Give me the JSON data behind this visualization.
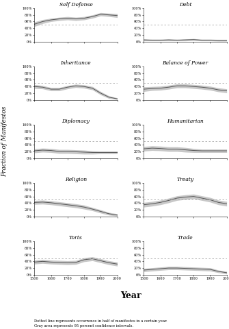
{
  "titles": [
    "Self Defense",
    "Debt",
    "Inheritance",
    "Balance of Power",
    "Diplomacy",
    "Humanitarian",
    "Religion",
    "Treaty",
    "Torts",
    "Trade"
  ],
  "year_range": [
    1500,
    2000
  ],
  "dashed_line_y": 0.5,
  "subplots": {
    "Self Defense": {
      "years": [
        1500,
        1550,
        1600,
        1650,
        1700,
        1750,
        1800,
        1850,
        1900,
        1950,
        2000
      ],
      "mean": [
        0.52,
        0.6,
        0.65,
        0.68,
        0.7,
        0.68,
        0.7,
        0.75,
        0.82,
        0.8,
        0.78
      ],
      "lower": [
        0.45,
        0.54,
        0.6,
        0.63,
        0.65,
        0.63,
        0.65,
        0.7,
        0.77,
        0.75,
        0.72
      ],
      "upper": [
        0.59,
        0.66,
        0.7,
        0.73,
        0.75,
        0.73,
        0.75,
        0.8,
        0.87,
        0.85,
        0.84
      ]
    },
    "Debt": {
      "years": [
        1500,
        1550,
        1600,
        1650,
        1700,
        1750,
        1800,
        1850,
        1900,
        1950,
        2000
      ],
      "mean": [
        0.05,
        0.04,
        0.04,
        0.05,
        0.04,
        0.05,
        0.06,
        0.04,
        0.04,
        0.03,
        0.03
      ],
      "lower": [
        0.02,
        0.02,
        0.02,
        0.02,
        0.02,
        0.02,
        0.03,
        0.02,
        0.02,
        0.01,
        0.01
      ],
      "upper": [
        0.08,
        0.07,
        0.07,
        0.08,
        0.07,
        0.08,
        0.09,
        0.07,
        0.07,
        0.06,
        0.06
      ]
    },
    "Inheritance": {
      "years": [
        1500,
        1550,
        1600,
        1650,
        1700,
        1750,
        1800,
        1850,
        1900,
        1950,
        2000
      ],
      "mean": [
        0.4,
        0.38,
        0.32,
        0.32,
        0.38,
        0.42,
        0.4,
        0.35,
        0.2,
        0.08,
        0.03
      ],
      "lower": [
        0.34,
        0.33,
        0.27,
        0.27,
        0.33,
        0.37,
        0.35,
        0.3,
        0.15,
        0.04,
        0.01
      ],
      "upper": [
        0.46,
        0.43,
        0.37,
        0.37,
        0.43,
        0.47,
        0.45,
        0.4,
        0.25,
        0.12,
        0.06
      ]
    },
    "Balance of Power": {
      "years": [
        1500,
        1550,
        1600,
        1650,
        1700,
        1750,
        1800,
        1850,
        1900,
        1950,
        2000
      ],
      "mean": [
        0.32,
        0.34,
        0.35,
        0.38,
        0.42,
        0.42,
        0.4,
        0.38,
        0.35,
        0.3,
        0.27
      ],
      "lower": [
        0.25,
        0.28,
        0.29,
        0.32,
        0.36,
        0.36,
        0.34,
        0.32,
        0.29,
        0.24,
        0.21
      ],
      "upper": [
        0.39,
        0.4,
        0.41,
        0.44,
        0.48,
        0.48,
        0.46,
        0.44,
        0.41,
        0.36,
        0.33
      ]
    },
    "Diplomacy": {
      "years": [
        1500,
        1550,
        1600,
        1650,
        1700,
        1750,
        1800,
        1850,
        1900,
        1950,
        2000
      ],
      "mean": [
        0.22,
        0.24,
        0.23,
        0.2,
        0.2,
        0.19,
        0.18,
        0.17,
        0.17,
        0.17,
        0.17
      ],
      "lower": [
        0.16,
        0.18,
        0.17,
        0.14,
        0.14,
        0.13,
        0.12,
        0.12,
        0.13,
        0.13,
        0.13
      ],
      "upper": [
        0.28,
        0.3,
        0.29,
        0.26,
        0.26,
        0.25,
        0.24,
        0.22,
        0.21,
        0.21,
        0.21
      ]
    },
    "Humanitarian": {
      "years": [
        1500,
        1550,
        1600,
        1650,
        1700,
        1750,
        1800,
        1850,
        1900,
        1950,
        2000
      ],
      "mean": [
        0.28,
        0.3,
        0.29,
        0.27,
        0.27,
        0.25,
        0.23,
        0.22,
        0.22,
        0.22,
        0.22
      ],
      "lower": [
        0.21,
        0.23,
        0.22,
        0.2,
        0.2,
        0.18,
        0.17,
        0.17,
        0.17,
        0.17,
        0.17
      ],
      "upper": [
        0.35,
        0.37,
        0.36,
        0.34,
        0.34,
        0.32,
        0.29,
        0.27,
        0.27,
        0.27,
        0.27
      ]
    },
    "Religion": {
      "years": [
        1500,
        1550,
        1600,
        1650,
        1700,
        1750,
        1800,
        1850,
        1900,
        1950,
        2000
      ],
      "mean": [
        0.42,
        0.43,
        0.41,
        0.38,
        0.35,
        0.32,
        0.28,
        0.22,
        0.15,
        0.08,
        0.04
      ],
      "lower": [
        0.36,
        0.37,
        0.35,
        0.32,
        0.29,
        0.26,
        0.22,
        0.17,
        0.1,
        0.04,
        0.01
      ],
      "upper": [
        0.48,
        0.49,
        0.47,
        0.44,
        0.41,
        0.38,
        0.34,
        0.27,
        0.2,
        0.12,
        0.08
      ]
    },
    "Treaty": {
      "years": [
        1500,
        1550,
        1600,
        1650,
        1700,
        1750,
        1800,
        1850,
        1900,
        1950,
        2000
      ],
      "mean": [
        0.35,
        0.38,
        0.42,
        0.48,
        0.55,
        0.58,
        0.6,
        0.55,
        0.5,
        0.42,
        0.38
      ],
      "lower": [
        0.28,
        0.31,
        0.35,
        0.41,
        0.48,
        0.51,
        0.53,
        0.48,
        0.43,
        0.35,
        0.31
      ],
      "upper": [
        0.42,
        0.45,
        0.49,
        0.55,
        0.62,
        0.65,
        0.67,
        0.62,
        0.57,
        0.49,
        0.45
      ]
    },
    "Torts": {
      "years": [
        1500,
        1550,
        1600,
        1650,
        1700,
        1750,
        1800,
        1850,
        1900,
        1950,
        2000
      ],
      "mean": [
        0.38,
        0.4,
        0.38,
        0.37,
        0.36,
        0.37,
        0.45,
        0.48,
        0.42,
        0.36,
        0.32
      ],
      "lower": [
        0.32,
        0.34,
        0.32,
        0.31,
        0.3,
        0.31,
        0.39,
        0.42,
        0.36,
        0.3,
        0.26
      ],
      "upper": [
        0.44,
        0.46,
        0.44,
        0.43,
        0.42,
        0.43,
        0.51,
        0.54,
        0.48,
        0.42,
        0.38
      ]
    },
    "Trade": {
      "years": [
        1500,
        1550,
        1600,
        1650,
        1700,
        1750,
        1800,
        1850,
        1900,
        1950,
        2000
      ],
      "mean": [
        0.14,
        0.16,
        0.18,
        0.2,
        0.2,
        0.19,
        0.18,
        0.17,
        0.16,
        0.1,
        0.06
      ],
      "lower": [
        0.09,
        0.11,
        0.13,
        0.15,
        0.15,
        0.14,
        0.13,
        0.12,
        0.11,
        0.06,
        0.02
      ],
      "upper": [
        0.19,
        0.21,
        0.23,
        0.25,
        0.25,
        0.24,
        0.23,
        0.22,
        0.21,
        0.14,
        0.1
      ]
    }
  },
  "xlabel": "Year",
  "ylabel": "Fraction of Manifestos",
  "footnote": "Dotted line represents occurrence in half of manifestos in a certain year.\nGray area represents 95 percent confidence intervals.",
  "line_color": "#555555",
  "shade_color": "#bbbbbb",
  "dashed_color": "#aaaaaa",
  "yticks": [
    0.0,
    0.2,
    0.4,
    0.6,
    0.8,
    1.0
  ],
  "ytick_labels": [
    "0%",
    "20%",
    "40%",
    "60%",
    "80%",
    "100%"
  ],
  "xticks": [
    1500,
    1600,
    1700,
    1800,
    1900,
    2000
  ]
}
